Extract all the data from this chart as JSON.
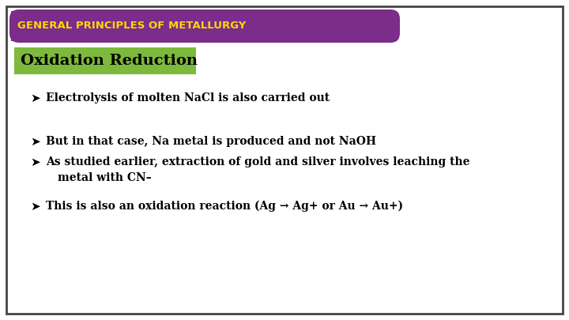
{
  "title": "GENERAL PRINCIPLES OF METALLURGY",
  "title_bg": "#7B2D8B",
  "title_color": "#FFD700",
  "subtitle": "Oxidation Reduction",
  "subtitle_bg": "#7DB93D",
  "subtitle_color": "#000000",
  "bg_color": "#FFFFFF",
  "border_color": "#444444",
  "bullet_lines": [
    [
      "Electrolysis of molten NaCl is also carried out"
    ],
    [
      "But in that case, Na metal is produced and not NaOH"
    ],
    [
      "As studied earlier, extraction of gold and silver involves leaching the",
      "metal with CN–"
    ],
    [
      "This is also an oxidation reaction (Ag → Ag+ or Au → Au+)"
    ]
  ],
  "bullet_color": "#000000",
  "text_color": "#000000",
  "font_size_title": 9.5,
  "font_size_subtitle": 14,
  "font_size_bullet": 10
}
